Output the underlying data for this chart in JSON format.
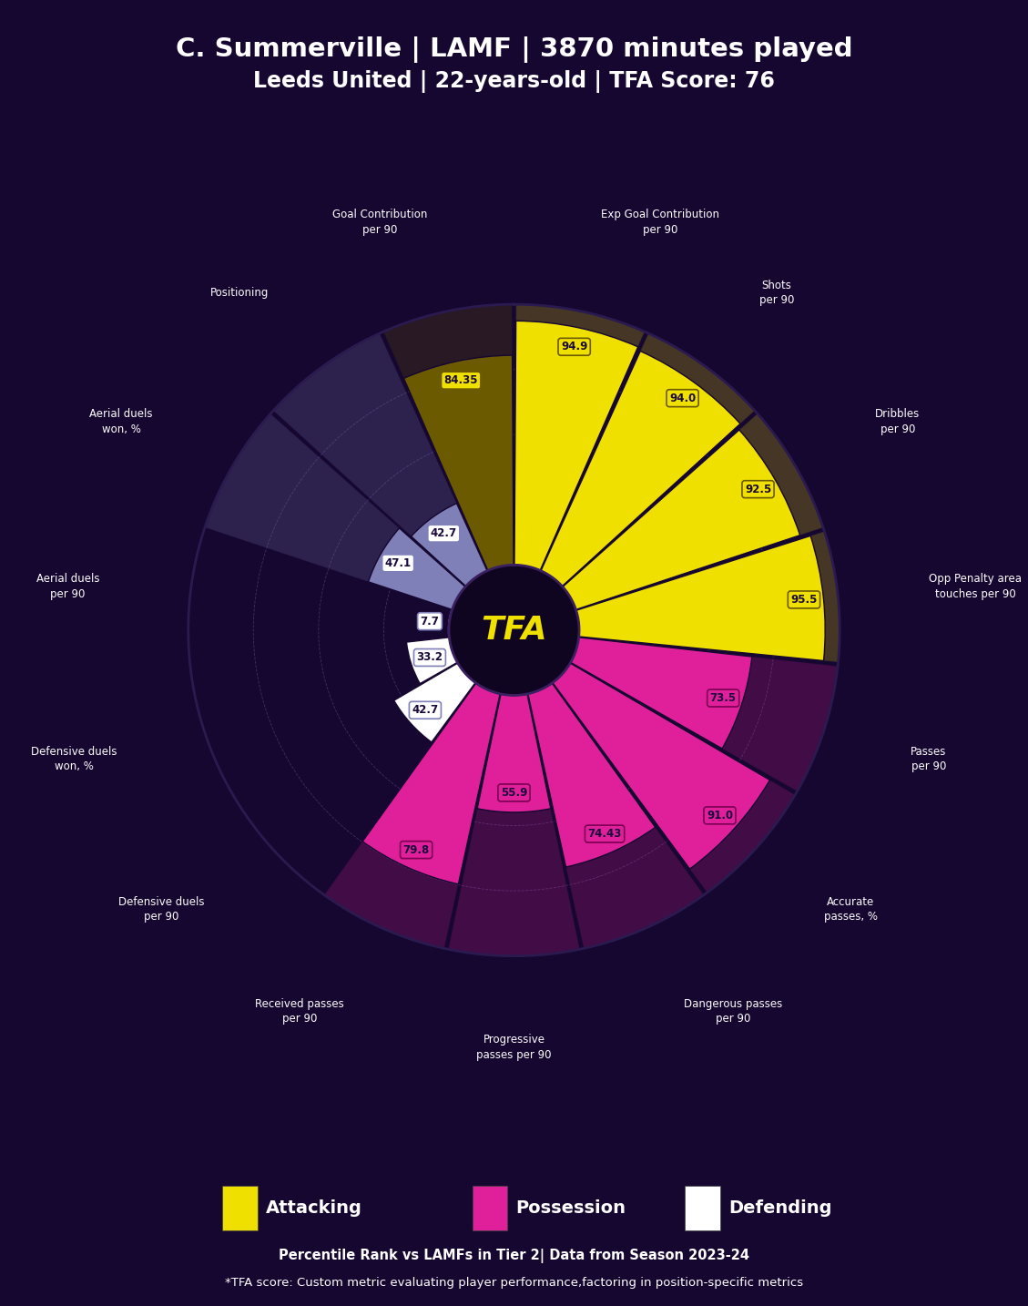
{
  "title_line1": "C. Summerville | LAMF | 3870 minutes played",
  "title_line2": "Leeds United | 22-years-old | TFA Score: 76",
  "subtitle": "Percentile Rank vs LAMFs in Tier 2| Data from Season 2023-24",
  "footnote": "*TFA score: Custom metric evaluating player performance,factoring in position-specific metrics",
  "tfa_label": "TFA",
  "bg_color": "#160730",
  "categories": [
    "Goal Contribution\nper 90",
    "Exp Goal Contribution\nper 90",
    "Shots\nper 90",
    "Dribbles\nper 90",
    "Opp Penalty area\ntouches per 90",
    "Passes\nper 90",
    "Accurate\npasses, %",
    "Dangerous passes\nper 90",
    "Progressive\npasses per 90",
    "Received passes\nper 90",
    "Defensive duels\nper 90",
    "Defensive duels\nwon, %",
    "Aerial duels\nper 90",
    "Aerial duels\nwon, %",
    "Positioning"
  ],
  "values": [
    84.35,
    94.9,
    94.0,
    92.5,
    95.5,
    73.5,
    91.0,
    74.43,
    55.9,
    79.8,
    42.7,
    33.2,
    7.7,
    47.1,
    42.7
  ],
  "slice_colors": [
    "#6b5a00",
    "#f0e000",
    "#f0e000",
    "#f0e000",
    "#f0e000",
    "#e0209a",
    "#e0209a",
    "#e0209a",
    "#e0209a",
    "#e0209a",
    "#ffffff",
    "#ffffff",
    "#ffffff",
    "#8080b8",
    "#8080b8"
  ],
  "bg_slice_colors": [
    "#6b5a00",
    "#f0e000",
    "#f0e000",
    "#f0e000",
    "#f0e000",
    "#e0209a",
    "#e0209a",
    "#e0209a",
    "#e0209a",
    "#e0209a",
    "none",
    "none",
    "none",
    "#8080b8",
    "#8080b8"
  ],
  "category_types": [
    "Attacking",
    "Attacking",
    "Attacking",
    "Attacking",
    "Attacking",
    "Possession",
    "Possession",
    "Possession",
    "Possession",
    "Possession",
    "Defending",
    "Defending",
    "Defending",
    "Defending",
    "Defending"
  ],
  "legend": [
    {
      "label": "Attacking",
      "color": "#f0e000"
    },
    {
      "label": "Possession",
      "color": "#e0209a"
    },
    {
      "label": "Defending",
      "color": "#ffffff"
    }
  ],
  "value_box_facecolors": {
    "Attacking": "#f0e000",
    "Possession": "#e0209a",
    "Defending": "#ffffff"
  },
  "value_box_textcolors": {
    "Attacking": "#1a0a3c",
    "Possession": "#1a0a3c",
    "Defending": "#1a0a3c"
  },
  "value_box_edgecolors": {
    "Attacking": "#6b5a00",
    "Possession": "#7a0050",
    "Defending": "#8080b8"
  },
  "tfa_circle_color": "#100520",
  "tfa_text_color": "#f0e000",
  "max_val": 100,
  "inner_r": 20,
  "grid_color": "#4a3870",
  "grid_alpha": 0.8,
  "separator_color": "#160730"
}
